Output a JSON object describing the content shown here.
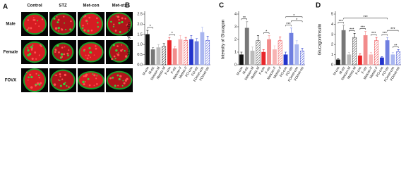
{
  "panel_a": {
    "label": "A",
    "columns": [
      "Control",
      "STZ",
      "Met-con",
      "Met-stz"
    ],
    "rows": [
      "Male",
      "Female",
      "FOVX"
    ]
  },
  "chart_data": [
    {
      "type": "bar",
      "panel_label": "B",
      "y_label": "Intensity of Insulin",
      "categories": [
        "M-con",
        "M-stz",
        "Metcon-M",
        "Metstz-M",
        "F-con",
        "F-stz",
        "Metcon-F",
        "Metstz-F",
        "FO-con",
        "FO-stz",
        "FOmet-con",
        "FOmet-stz"
      ],
      "values": [
        1.5,
        0.75,
        0.85,
        0.9,
        1.2,
        0.8,
        1.25,
        1.2,
        1.25,
        1.15,
        1.6,
        1.2
      ],
      "errors": [
        0.2,
        0.1,
        0.15,
        0.15,
        0.15,
        0.1,
        0.2,
        0.15,
        0.2,
        0.15,
        0.25,
        0.2
      ],
      "colors": [
        "#111111",
        "#777777",
        "#bbbbbb",
        "#111111",
        "#e8262a",
        "#f28b8b",
        "#f7b3b3",
        "#e8262a",
        "#2233cc",
        "#6f7fe0",
        "#a9b6f0",
        "#2233cc"
      ],
      "hatched": [
        false,
        false,
        false,
        true,
        false,
        false,
        false,
        true,
        false,
        false,
        false,
        true
      ],
      "ylim": [
        0,
        2.5
      ],
      "yticks": [
        {
          "value": 0,
          "label": "0.0"
        },
        {
          "value": 0.5,
          "label": "0.5"
        },
        {
          "value": 1,
          "label": "1.0"
        },
        {
          "value": 1.5,
          "label": "1.5"
        },
        {
          "value": 2,
          "label": "2.0"
        },
        {
          "value": 2.5,
          "label": "2.5"
        }
      ],
      "significance": [
        {
          "pair": [
            0,
            1
          ],
          "text": "*"
        },
        {
          "pair": [
            4,
            5
          ],
          "text": "*"
        }
      ]
    },
    {
      "type": "bar",
      "panel_label": "C",
      "y_label": "Intensity of Glucagon",
      "categories": [
        "M-con",
        "M-stz",
        "Metcon-M",
        "Metstz-M",
        "F-con",
        "F-stz",
        "Metcon-F",
        "Metstz-F",
        "FO-con",
        "FO-stz",
        "FOmet-con",
        "FOmet-stz"
      ],
      "values": [
        0.8,
        2.9,
        1.1,
        1.9,
        1.0,
        2.0,
        1.2,
        1.9,
        0.8,
        2.5,
        1.6,
        1.1
      ],
      "errors": [
        0.2,
        0.5,
        0.3,
        0.4,
        0.2,
        0.3,
        0.3,
        0.3,
        0.2,
        0.4,
        0.3,
        0.2
      ],
      "colors": [
        "#111111",
        "#777777",
        "#bbbbbb",
        "#111111",
        "#e8262a",
        "#f28b8b",
        "#f7b3b3",
        "#e8262a",
        "#2233cc",
        "#6f7fe0",
        "#a9b6f0",
        "#2233cc"
      ],
      "hatched": [
        false,
        false,
        false,
        true,
        false,
        false,
        false,
        true,
        false,
        false,
        false,
        true
      ],
      "ylim": [
        0,
        4
      ],
      "yticks": [
        0,
        1,
        2,
        3,
        4
      ],
      "significance": [
        {
          "pair": [
            0,
            1
          ],
          "text": "**"
        },
        {
          "pair": [
            4,
            5
          ],
          "text": "*"
        },
        {
          "pair": [
            8,
            9
          ],
          "text": "***"
        },
        {
          "pair": [
            9,
            11
          ],
          "text": "*"
        },
        {
          "pair": [
            8,
            11
          ],
          "text": "*"
        }
      ]
    },
    {
      "type": "bar",
      "panel_label": "D",
      "y_label": "Glucagon/Insulin",
      "categories": [
        "M-con",
        "M-stz",
        "Metcon-M",
        "Metstz-M",
        "F-con",
        "F-stz",
        "Metcon-F",
        "Metstz-F",
        "FO-con",
        "FO-stz",
        "FOmet-con",
        "FOmet-stz"
      ],
      "values": [
        0.5,
        3.4,
        1.0,
        2.7,
        0.9,
        2.9,
        1.0,
        2.4,
        0.7,
        2.4,
        1.0,
        1.3
      ],
      "errors": [
        0.1,
        0.5,
        0.2,
        0.4,
        0.2,
        0.4,
        0.2,
        0.3,
        0.1,
        0.3,
        0.2,
        0.2
      ],
      "colors": [
        "#111111",
        "#777777",
        "#bbbbbb",
        "#111111",
        "#e8262a",
        "#f28b8b",
        "#f7b3b3",
        "#e8262a",
        "#2233cc",
        "#6f7fe0",
        "#a9b6f0",
        "#2233cc"
      ],
      "hatched": [
        false,
        false,
        false,
        true,
        false,
        false,
        false,
        true,
        false,
        false,
        false,
        true
      ],
      "ylim": [
        0,
        5
      ],
      "yticks": [
        0,
        1,
        2,
        3,
        4,
        5
      ],
      "significance": [
        {
          "pair": [
            0,
            1
          ],
          "text": "***"
        },
        {
          "pair": [
            2,
            3
          ],
          "text": "***"
        },
        {
          "pair": [
            4,
            5
          ],
          "text": "***"
        },
        {
          "pair": [
            6,
            7
          ],
          "text": "***"
        },
        {
          "pair": [
            8,
            9
          ],
          "text": "***"
        },
        {
          "pair": [
            10,
            11
          ],
          "text": "**"
        },
        {
          "pair": [
            9,
            11
          ],
          "text": "***"
        },
        {
          "pair": [
            1,
            9
          ],
          "text": "***"
        }
      ]
    }
  ]
}
